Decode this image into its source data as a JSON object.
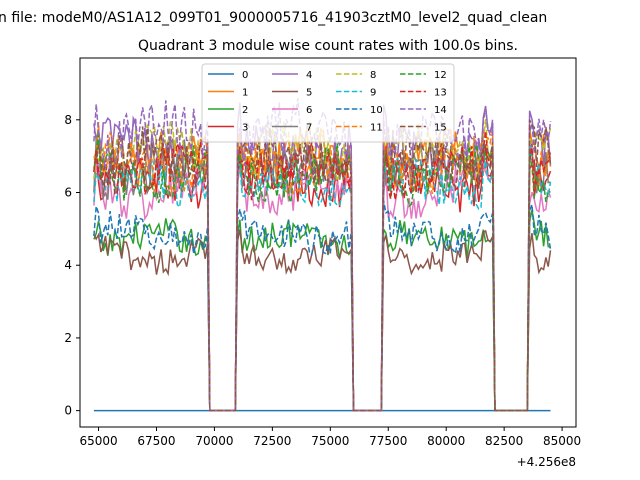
{
  "chart_data": {
    "type": "line",
    "suptitle": "n file: modeM0/AS1A12_099T01_9000005716_41903cztM0_level2_quad_clean",
    "title": "Quadrant 3 module wise count rates with 100.0s bins.",
    "xlabel": "",
    "ylabel": "",
    "x_offset_label": "+4.256e8",
    "xlim": [
      64200,
      85600
    ],
    "ylim": [
      -0.45,
      9.7
    ],
    "xticks": [
      65000,
      67500,
      70000,
      72500,
      75000,
      77500,
      80000,
      82500,
      85000
    ],
    "xtick_labels": [
      "65000",
      "67500",
      "70000",
      "72500",
      "75000",
      "77500",
      "80000",
      "82500",
      "85000"
    ],
    "yticks": [
      0,
      2,
      4,
      6,
      8
    ],
    "ytick_labels": [
      "0",
      "2",
      "4",
      "6",
      "8"
    ],
    "x_range": [
      64800,
      84500
    ],
    "bin_width": 100,
    "gap_intervals": [
      [
        69800,
        70900
      ],
      [
        76000,
        77200
      ],
      [
        82100,
        83500
      ]
    ],
    "grid": false,
    "legend_placement": "upper-center",
    "legend_columns": 4,
    "series": [
      {
        "name": "0",
        "color": "#1f77b4",
        "dash": "solid",
        "level": 0.0
      },
      {
        "name": "1",
        "color": "#ff7f0e",
        "dash": "solid",
        "level": 6.9
      },
      {
        "name": "2",
        "color": "#2ca02c",
        "dash": "solid",
        "level": 4.7
      },
      {
        "name": "3",
        "color": "#d62728",
        "dash": "solid",
        "level": 6.3
      },
      {
        "name": "4",
        "color": "#9467bd",
        "dash": "solid",
        "level": 7.2
      },
      {
        "name": "5",
        "color": "#8c564b",
        "dash": "solid",
        "level": 4.3
      },
      {
        "name": "6",
        "color": "#e377c2",
        "dash": "solid",
        "level": 6.0
      },
      {
        "name": "7",
        "color": "#7f7f7f",
        "dash": "solid",
        "level": 6.6
      },
      {
        "name": "8",
        "color": "#bcbd22",
        "dash": "dashed",
        "level": 7.1
      },
      {
        "name": "9",
        "color": "#17becf",
        "dash": "dashed",
        "level": 6.2
      },
      {
        "name": "10",
        "color": "#1f77b4",
        "dash": "dashed",
        "level": 4.9
      },
      {
        "name": "11",
        "color": "#ff7f0e",
        "dash": "dashed",
        "level": 6.8
      },
      {
        "name": "12",
        "color": "#2ca02c",
        "dash": "dashed",
        "level": 6.5
      },
      {
        "name": "13",
        "color": "#d62728",
        "dash": "dashed",
        "level": 6.6
      },
      {
        "name": "14",
        "color": "#9467bd",
        "dash": "dashed",
        "level": 7.6
      },
      {
        "name": "15",
        "color": "#8c564b",
        "dash": "dashed",
        "level": 6.9
      }
    ]
  }
}
